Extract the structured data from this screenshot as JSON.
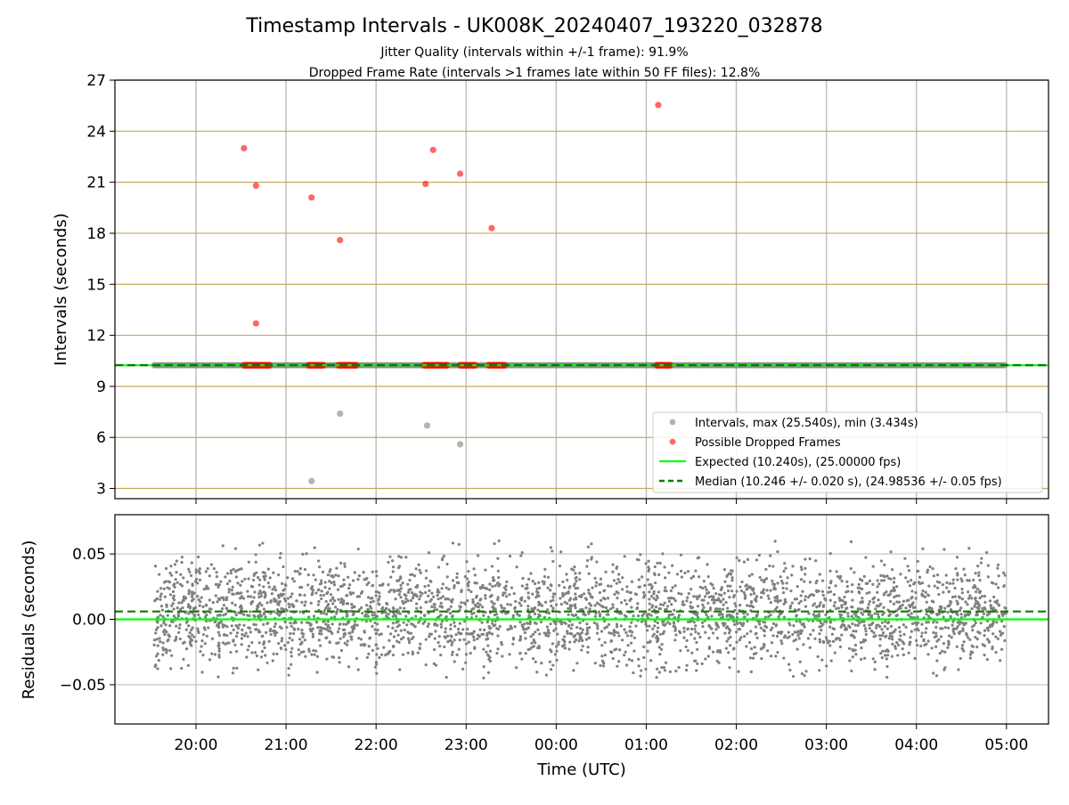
{
  "figure": {
    "title": "Timestamp Intervals - UK008K_20240407_193220_032878",
    "subtitle_1": "Jitter Quality (intervals within +/-1 frame): 91.9%",
    "subtitle_2": "Dropped Frame Rate (intervals >1 frames late within 50 FF files): 12.8%"
  },
  "chart_data": [
    {
      "type": "scatter",
      "panel": "intervals",
      "ylabel": "Intervals (seconds)",
      "ylim": [
        2.4,
        27
      ],
      "yticks": [
        3,
        6,
        9,
        12,
        15,
        18,
        21,
        24,
        27
      ],
      "ytick_labels": [
        "3",
        "6",
        "9",
        "12",
        "15",
        "18",
        "21",
        "24",
        "27"
      ],
      "xlim": [
        "19:06",
        "05:28"
      ],
      "x_range_data": [
        "19:32",
        "05:00"
      ],
      "grid": "on",
      "legend_position": "lower-right",
      "legend": [
        "Intervals, max (25.540s), min (3.434s)",
        "Possible Dropped Frames",
        "Expected (10.240s), (25.00000 fps)",
        "Median (10.246 +/- 0.020 s), (24.98536 +/- 0.05 fps)"
      ],
      "reference_lines": {
        "expected": 10.24,
        "median": 10.246
      },
      "baseline_series": {
        "name": "Intervals, max (25.540s), min (3.434s)",
        "y": 10.24,
        "x_from": "19:32",
        "x_to": "05:00"
      },
      "outliers_low": [
        {
          "x": "21:17",
          "y": 3.434
        },
        {
          "x": "21:36",
          "y": 7.4
        },
        {
          "x": "22:34",
          "y": 6.7
        },
        {
          "x": "22:56",
          "y": 5.6
        }
      ],
      "dropped_clusters": [
        {
          "x_from": "20:32",
          "x_to": "20:50",
          "y": 10.24
        },
        {
          "x_from": "21:15",
          "x_to": "21:25",
          "y": 10.24
        },
        {
          "x_from": "21:35",
          "x_to": "21:47",
          "y": 10.24
        },
        {
          "x_from": "22:32",
          "x_to": "22:48",
          "y": 10.24
        },
        {
          "x_from": "22:56",
          "x_to": "23:06",
          "y": 10.24
        },
        {
          "x_from": "23:15",
          "x_to": "23:26",
          "y": 10.24
        },
        {
          "x_from": "01:07",
          "x_to": "01:16",
          "y": 10.24
        }
      ],
      "dropped_points": [
        {
          "x": "20:32",
          "y": 23.0
        },
        {
          "x": "20:40",
          "y": 20.8
        },
        {
          "x": "20:40",
          "y": 12.7
        },
        {
          "x": "21:17",
          "y": 20.1
        },
        {
          "x": "21:36",
          "y": 17.6
        },
        {
          "x": "22:33",
          "y": 20.9
        },
        {
          "x": "22:38",
          "y": 22.9
        },
        {
          "x": "22:56",
          "y": 21.5
        },
        {
          "x": "23:17",
          "y": 18.3
        },
        {
          "x": "01:08",
          "y": 25.54
        }
      ]
    },
    {
      "type": "scatter",
      "panel": "residuals",
      "xlabel": "Time (UTC)",
      "ylabel": "Residuals (seconds)",
      "ylim": [
        -0.08,
        0.08
      ],
      "yticks": [
        0.05,
        0.0,
        -0.05
      ],
      "ytick_labels": [
        "0.05",
        "0.00",
        "−0.05"
      ],
      "xticks": [
        "20:00",
        "21:00",
        "22:00",
        "23:00",
        "00:00",
        "01:00",
        "02:00",
        "03:00",
        "04:00",
        "05:00"
      ],
      "xlim": [
        "19:06",
        "05:28"
      ],
      "grid": "on",
      "reference_lines": {
        "expected": 0.0,
        "median": 0.006
      },
      "series": [
        {
          "name": "residuals",
          "x_range": [
            "19:32",
            "05:00"
          ],
          "center": 0.005,
          "spread": 0.02,
          "min": -0.045,
          "max": 0.06,
          "count": 3300
        }
      ]
    }
  ],
  "colors": {
    "intervals": "#808080",
    "dropped": "#ff0000",
    "expected": "#00ff00",
    "median": "#008000",
    "hgrid_top": "#c8a95a",
    "grid": "#c0c0c0"
  }
}
